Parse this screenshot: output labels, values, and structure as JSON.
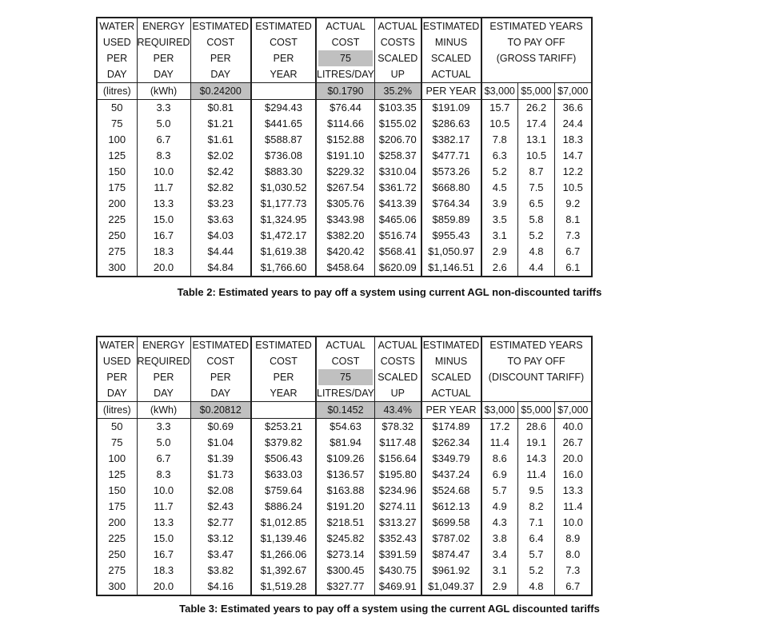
{
  "colors": {
    "highlight": "#c0c0c0",
    "grid": "#1f1f1f",
    "text": "#141414",
    "background": "#ffffff"
  },
  "tables": [
    {
      "caption": "Table 2: Estimated years to pay off a system using current AGL non-discounted tariffs",
      "columns": [
        {
          "header_lines": [
            "WATER",
            "USED",
            "PER",
            "DAY"
          ],
          "unit": "(litres)",
          "unit_highlighted": false
        },
        {
          "header_lines": [
            "ENERGY",
            "REQUIRED",
            "PER",
            "DAY"
          ],
          "unit": "(kWh)",
          "unit_highlighted": false
        },
        {
          "header_lines": [
            "ESTIMATED",
            "COST",
            "PER",
            "DAY"
          ],
          "unit": "$0.24200",
          "unit_highlighted": true
        },
        {
          "header_lines": [
            "ESTIMATED",
            "COST",
            "PER",
            "YEAR"
          ],
          "unit": "",
          "unit_highlighted": false
        },
        {
          "header_lines": [
            "ACTUAL",
            "COST",
            "75",
            "LITRES/DAY"
          ],
          "highlighted_header_line": 2,
          "unit": "$0.1790",
          "unit_highlighted": true
        },
        {
          "header_lines": [
            "ACTUAL",
            "COSTS",
            "SCALED",
            "UP"
          ],
          "unit": "35.2%",
          "unit_highlighted": true
        },
        {
          "header_lines": [
            "ESTIMATED",
            "MINUS",
            "SCALED",
            "ACTUAL"
          ],
          "unit": "PER YEAR",
          "unit_highlighted": false
        }
      ],
      "payoff": {
        "header_lines": [
          "ESTIMATED YEARS",
          "TO PAY OFF",
          "(GROSS TARIFF)"
        ],
        "system_costs": [
          "$3,000",
          "$5,000",
          "$7,000"
        ]
      },
      "rows": [
        [
          "50",
          "3.3",
          "$0.81",
          "$294.43",
          "$76.44",
          "$103.35",
          "$191.09",
          "15.7",
          "26.2",
          "36.6"
        ],
        [
          "75",
          "5.0",
          "$1.21",
          "$441.65",
          "$114.66",
          "$155.02",
          "$286.63",
          "10.5",
          "17.4",
          "24.4"
        ],
        [
          "100",
          "6.7",
          "$1.61",
          "$588.87",
          "$152.88",
          "$206.70",
          "$382.17",
          "7.8",
          "13.1",
          "18.3"
        ],
        [
          "125",
          "8.3",
          "$2.02",
          "$736.08",
          "$191.10",
          "$258.37",
          "$477.71",
          "6.3",
          "10.5",
          "14.7"
        ],
        [
          "150",
          "10.0",
          "$2.42",
          "$883.30",
          "$229.32",
          "$310.04",
          "$573.26",
          "5.2",
          "8.7",
          "12.2"
        ],
        [
          "175",
          "11.7",
          "$2.82",
          "$1,030.52",
          "$267.54",
          "$361.72",
          "$668.80",
          "4.5",
          "7.5",
          "10.5"
        ],
        [
          "200",
          "13.3",
          "$3.23",
          "$1,177.73",
          "$305.76",
          "$413.39",
          "$764.34",
          "3.9",
          "6.5",
          "9.2"
        ],
        [
          "225",
          "15.0",
          "$3.63",
          "$1,324.95",
          "$343.98",
          "$465.06",
          "$859.89",
          "3.5",
          "5.8",
          "8.1"
        ],
        [
          "250",
          "16.7",
          "$4.03",
          "$1,472.17",
          "$382.20",
          "$516.74",
          "$955.43",
          "3.1",
          "5.2",
          "7.3"
        ],
        [
          "275",
          "18.3",
          "$4.44",
          "$1,619.38",
          "$420.42",
          "$568.41",
          "$1,050.97",
          "2.9",
          "4.8",
          "6.7"
        ],
        [
          "300",
          "20.0",
          "$4.84",
          "$1,766.60",
          "$458.64",
          "$620.09",
          "$1,146.51",
          "2.6",
          "4.4",
          "6.1"
        ]
      ]
    },
    {
      "caption": "Table 3: Estimated years to pay off a system using the current AGL discounted tariffs",
      "columns": [
        {
          "header_lines": [
            "WATER",
            "USED",
            "PER",
            "DAY"
          ],
          "unit": "(litres)",
          "unit_highlighted": false
        },
        {
          "header_lines": [
            "ENERGY",
            "REQUIRED",
            "PER",
            "DAY"
          ],
          "unit": "(kWh)",
          "unit_highlighted": false
        },
        {
          "header_lines": [
            "ESTIMATED",
            "COST",
            "PER",
            "DAY"
          ],
          "unit": "$0.20812",
          "unit_highlighted": true
        },
        {
          "header_lines": [
            "ESTIMATED",
            "COST",
            "PER",
            "YEAR"
          ],
          "unit": "",
          "unit_highlighted": false
        },
        {
          "header_lines": [
            "ACTUAL",
            "COST",
            "75",
            "LITRES/DAY"
          ],
          "highlighted_header_line": 2,
          "unit": "$0.1452",
          "unit_highlighted": true
        },
        {
          "header_lines": [
            "ACTUAL",
            "COSTS",
            "SCALED",
            "UP"
          ],
          "unit": "43.4%",
          "unit_highlighted": true
        },
        {
          "header_lines": [
            "ESTIMATED",
            "MINUS",
            "SCALED",
            "ACTUAL"
          ],
          "unit": "PER YEAR",
          "unit_highlighted": false
        }
      ],
      "payoff": {
        "header_lines": [
          "ESTIMATED YEARS",
          "TO PAY OFF",
          "(DISCOUNT TARIFF)"
        ],
        "system_costs": [
          "$3,000",
          "$5,000",
          "$7,000"
        ]
      },
      "rows": [
        [
          "50",
          "3.3",
          "$0.69",
          "$253.21",
          "$54.63",
          "$78.32",
          "$174.89",
          "17.2",
          "28.6",
          "40.0"
        ],
        [
          "75",
          "5.0",
          "$1.04",
          "$379.82",
          "$81.94",
          "$117.48",
          "$262.34",
          "11.4",
          "19.1",
          "26.7"
        ],
        [
          "100",
          "6.7",
          "$1.39",
          "$506.43",
          "$109.26",
          "$156.64",
          "$349.79",
          "8.6",
          "14.3",
          "20.0"
        ],
        [
          "125",
          "8.3",
          "$1.73",
          "$633.03",
          "$136.57",
          "$195.80",
          "$437.24",
          "6.9",
          "11.4",
          "16.0"
        ],
        [
          "150",
          "10.0",
          "$2.08",
          "$759.64",
          "$163.88",
          "$234.96",
          "$524.68",
          "5.7",
          "9.5",
          "13.3"
        ],
        [
          "175",
          "11.7",
          "$2.43",
          "$886.24",
          "$191.20",
          "$274.11",
          "$612.13",
          "4.9",
          "8.2",
          "11.4"
        ],
        [
          "200",
          "13.3",
          "$2.77",
          "$1,012.85",
          "$218.51",
          "$313.27",
          "$699.58",
          "4.3",
          "7.1",
          "10.0"
        ],
        [
          "225",
          "15.0",
          "$3.12",
          "$1,139.46",
          "$245.82",
          "$352.43",
          "$787.02",
          "3.8",
          "6.4",
          "8.9"
        ],
        [
          "250",
          "16.7",
          "$3.47",
          "$1,266.06",
          "$273.14",
          "$391.59",
          "$874.47",
          "3.4",
          "5.7",
          "8.0"
        ],
        [
          "275",
          "18.3",
          "$3.82",
          "$1,392.67",
          "$300.45",
          "$430.75",
          "$961.92",
          "3.1",
          "5.2",
          "7.3"
        ],
        [
          "300",
          "20.0",
          "$4.16",
          "$1,519.28",
          "$327.77",
          "$469.91",
          "$1,049.37",
          "2.9",
          "4.8",
          "6.7"
        ]
      ]
    }
  ]
}
